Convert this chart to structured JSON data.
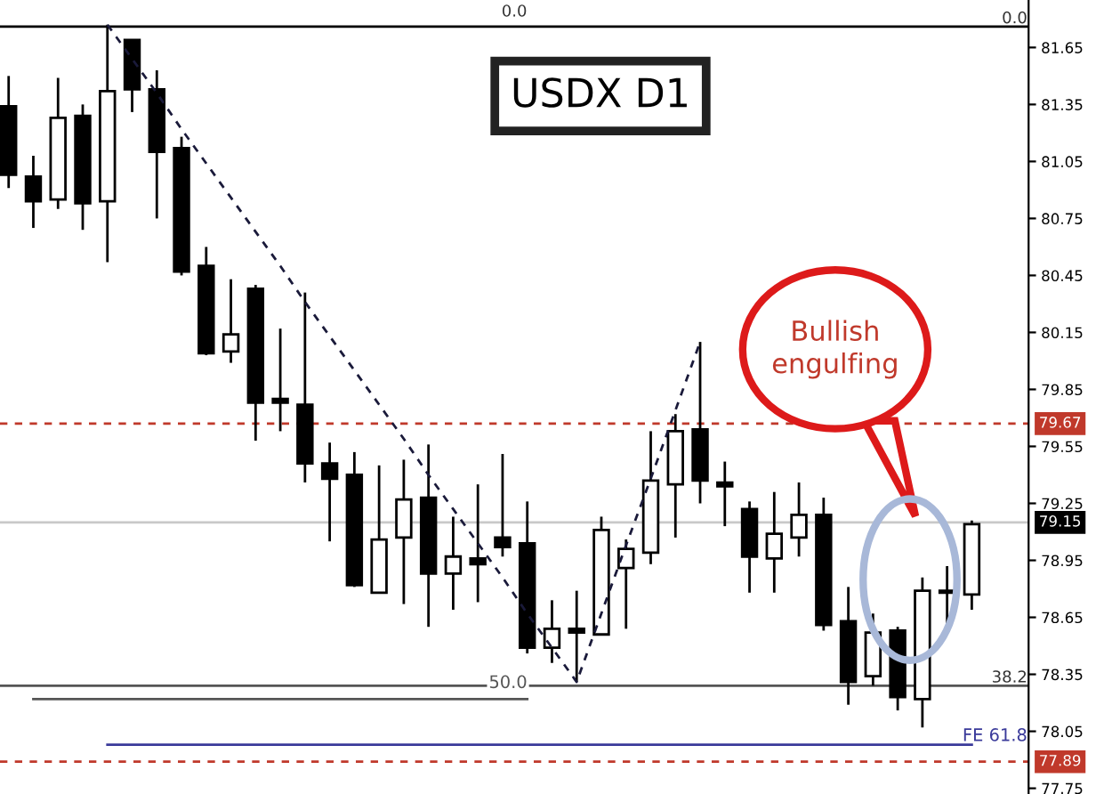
{
  "chart_data": {
    "type": "candlestick",
    "title": "USDX D1",
    "categories": [
      null,
      null,
      null,
      null,
      null,
      null,
      null,
      null,
      null,
      null,
      null,
      null,
      null,
      null,
      null,
      null,
      null,
      null,
      null,
      null,
      null,
      null,
      null,
      null,
      null,
      null,
      null,
      null,
      null,
      null,
      null,
      null,
      null,
      null,
      null,
      null,
      null,
      null,
      null,
      null
    ],
    "ohlc": [
      [
        81.34,
        81.5,
        80.91,
        80.98
      ],
      [
        80.97,
        81.08,
        80.7,
        80.84
      ],
      [
        80.85,
        81.49,
        80.8,
        81.28
      ],
      [
        81.29,
        81.35,
        80.69,
        80.83
      ],
      [
        80.84,
        81.77,
        80.52,
        81.42
      ],
      [
        81.69,
        81.69,
        81.31,
        81.43
      ],
      [
        81.43,
        81.53,
        80.75,
        81.1
      ],
      [
        81.12,
        81.18,
        80.45,
        80.47
      ],
      [
        80.5,
        80.6,
        80.03,
        80.04
      ],
      [
        80.05,
        80.43,
        79.99,
        80.14
      ],
      [
        80.38,
        80.4,
        79.58,
        79.78
      ],
      [
        79.8,
        80.17,
        79.63,
        79.78
      ],
      [
        79.77,
        80.36,
        79.36,
        79.46
      ],
      [
        79.46,
        79.57,
        79.05,
        79.38
      ],
      [
        79.4,
        79.52,
        78.81,
        78.82
      ],
      [
        78.78,
        79.45,
        78.78,
        79.06
      ],
      [
        79.07,
        79.48,
        78.72,
        79.27
      ],
      [
        79.28,
        79.56,
        78.6,
        78.88
      ],
      [
        78.88,
        79.18,
        78.69,
        78.97
      ],
      [
        78.96,
        79.35,
        78.73,
        78.93
      ],
      [
        79.07,
        79.51,
        78.97,
        79.02
      ],
      [
        79.04,
        79.26,
        78.46,
        78.49
      ],
      [
        78.49,
        78.74,
        78.41,
        78.59
      ],
      [
        78.59,
        78.79,
        78.31,
        78.57
      ],
      [
        78.56,
        79.18,
        78.56,
        79.11
      ],
      [
        78.91,
        79.06,
        78.59,
        79.01
      ],
      [
        78.99,
        79.63,
        78.93,
        79.37
      ],
      [
        79.35,
        79.72,
        79.07,
        79.63
      ],
      [
        79.64,
        80.1,
        79.25,
        79.37
      ],
      [
        79.36,
        79.47,
        79.13,
        79.34
      ],
      [
        79.22,
        79.26,
        78.78,
        78.97
      ],
      [
        78.96,
        79.31,
        78.78,
        79.09
      ],
      [
        79.07,
        79.36,
        78.97,
        79.19
      ],
      [
        79.19,
        79.28,
        78.58,
        78.61
      ],
      [
        78.63,
        78.81,
        78.19,
        78.31
      ],
      [
        78.34,
        78.67,
        78.29,
        78.57
      ],
      [
        78.58,
        78.6,
        78.16,
        78.23
      ],
      [
        78.22,
        78.86,
        78.07,
        78.79
      ],
      [
        78.78,
        78.92,
        78.6,
        78.78
      ],
      [
        78.77,
        79.16,
        78.69,
        79.14
      ]
    ],
    "series": [
      {
        "type": "line",
        "color": "#1a1a3a",
        "line_style": "dashed",
        "values": [
          null,
          null,
          null,
          null,
          81.77,
          81.59,
          81.41,
          81.22,
          81.04,
          80.86,
          80.68,
          80.5,
          80.31,
          80.13,
          79.95,
          79.77,
          79.59,
          79.4,
          79.22,
          79.04,
          78.86,
          78.67,
          78.49,
          78.31,
          78.67,
          79.03,
          79.38,
          79.74,
          80.1,
          null,
          null,
          null,
          null,
          null,
          null,
          null,
          null,
          null,
          null,
          null
        ]
      },
      {
        "type": "line",
        "name": "50.0",
        "color": "#555555",
        "line_style": "solid",
        "values": [
          null,
          78.22,
          78.22,
          78.22,
          78.22,
          78.22,
          78.22,
          78.22,
          78.22,
          78.22,
          78.22,
          78.22,
          78.22,
          78.22,
          78.22,
          78.22,
          78.22,
          78.22,
          78.22,
          78.22,
          78.22,
          78.22,
          null,
          null,
          null,
          null,
          null,
          null,
          null,
          null,
          null,
          null,
          null,
          null,
          null,
          null,
          null,
          null,
          null,
          null
        ]
      },
      {
        "type": "line",
        "name": "FE 61.8",
        "color": "#3a3a9a",
        "line_style": "solid",
        "values": [
          null,
          null,
          null,
          null,
          77.98,
          77.98,
          77.98,
          77.98,
          77.98,
          77.98,
          77.98,
          77.98,
          77.98,
          77.98,
          77.98,
          77.98,
          77.98,
          77.98,
          77.98,
          77.98,
          77.98,
          77.98,
          77.98,
          77.98,
          77.98,
          77.98,
          77.98,
          77.98,
          77.98,
          77.98,
          77.98,
          77.98,
          77.98,
          77.98,
          77.98,
          77.98,
          77.98,
          77.98,
          77.98,
          77.98
        ]
      }
    ],
    "ref_lines": [
      {
        "axis": "y",
        "value": 81.76,
        "color": "#000000",
        "line_style": "solid"
      },
      {
        "axis": "y",
        "value": 79.67,
        "label": "79.67",
        "color": "#c0392b",
        "line_style": "dashed"
      },
      {
        "axis": "y",
        "value": 79.15,
        "label": "79.15",
        "color": "#c8c8c8",
        "line_style": "solid"
      },
      {
        "axis": "y",
        "value": 78.29,
        "color": "#555555",
        "line_style": "solid"
      },
      {
        "axis": "y",
        "value": 77.89,
        "label": "77.89",
        "color": "#c0392b",
        "line_style": "dashed"
      }
    ],
    "annotations": [
      {
        "text": "0.0",
        "y": 81.76
      },
      {
        "text": "38.2",
        "y": 78.29
      },
      "0.0",
      "Bullish engulfing"
    ],
    "ylim": [
      77.72,
      81.9
    ],
    "yticks": [
      77.75,
      78.05,
      78.35,
      78.65,
      78.95,
      79.25,
      79.55,
      79.85,
      80.15,
      80.45,
      80.75,
      81.05,
      81.35,
      81.65
    ],
    "tick_labels": "y",
    "grid": false
  }
}
